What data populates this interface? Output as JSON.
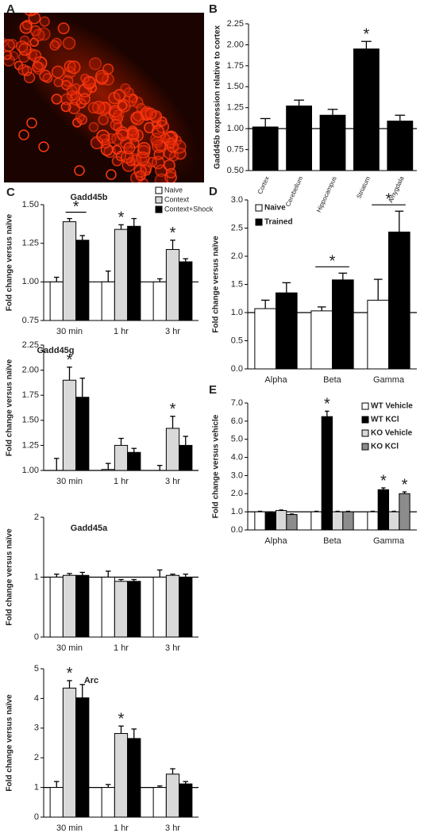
{
  "image_panel": {
    "label": "A"
  },
  "chart_data": [
    {
      "type": "bar",
      "panel": "B",
      "ylabel": "Gadd45b expression relative to cortex",
      "categories": [
        "Cortex",
        "Cerebellum",
        "Hippocampus",
        "Striatum",
        "Amygdala"
      ],
      "values": [
        1.02,
        1.27,
        1.16,
        1.95,
        1.09
      ],
      "errors": [
        0.1,
        0.07,
        0.07,
        0.09,
        0.07
      ],
      "significance": [
        null,
        null,
        null,
        "*",
        null
      ],
      "color": "#000000",
      "ref_line": 1,
      "ylim": [
        0.5,
        2.25
      ],
      "yticks": [
        {
          "value": 0.5,
          "label": "0.50"
        },
        {
          "value": 0.75,
          "label": "0.75"
        },
        {
          "value": 1,
          "label": "1.00"
        },
        {
          "value": 1.25,
          "label": "1.25"
        },
        {
          "value": 1.5,
          "label": "1.50"
        },
        {
          "value": 1.75,
          "label": "1.75"
        },
        {
          "value": 2,
          "label": "2.00"
        },
        {
          "value": 2.25,
          "label": "2.25"
        }
      ]
    },
    {
      "type": "grouped_bar",
      "panel": "C",
      "title": "Gadd45b",
      "ylabel": "Fold change versus naïve",
      "categories": [
        "30 min",
        "1 hr",
        "3 hr"
      ],
      "legend": "top-right",
      "brackets": [
        "30 min"
      ],
      "ref_line": 1,
      "series": [
        {
          "name": "Naive",
          "color": "#ffffff",
          "values": [
            1.0,
            1.0,
            1.0
          ],
          "errors": [
            0.03,
            0.07,
            0.02
          ]
        },
        {
          "name": "Context",
          "color": "#d9d9d9",
          "values": [
            1.39,
            1.34,
            1.21
          ],
          "errors": [
            0.02,
            0.03,
            0.06
          ],
          "significance": [
            "*",
            "*",
            "*"
          ]
        },
        {
          "name": "Context+Shock",
          "color": "#000000",
          "values": [
            1.27,
            1.36,
            1.13
          ],
          "errors": [
            0.03,
            0.05,
            0.02
          ]
        }
      ],
      "ylim": [
        0.75,
        1.5
      ],
      "yticks": [
        {
          "value": 0.75,
          "label": "0.75"
        },
        {
          "value": 1,
          "label": "1.00"
        },
        {
          "value": 1.25,
          "label": "1.25"
        },
        {
          "value": 1.5,
          "label": "1.50"
        }
      ]
    },
    {
      "type": "grouped_bar",
      "title": "Gadd45g",
      "ylabel": "Fold change versus naïve",
      "categories": [
        "30 min",
        "1 hr",
        "3 hr"
      ],
      "ref_line": 1,
      "series": [
        {
          "color": "#ffffff",
          "values": [
            1.0,
            1.01,
            1.0
          ],
          "errors": [
            0.12,
            0.06,
            0.05
          ]
        },
        {
          "color": "#d9d9d9",
          "values": [
            1.9,
            1.25,
            1.42
          ],
          "errors": [
            0.13,
            0.07,
            0.12
          ],
          "significance": [
            "*",
            null,
            "*"
          ]
        },
        {
          "color": "#000000",
          "values": [
            1.73,
            1.18,
            1.25
          ],
          "errors": [
            0.19,
            0.04,
            0.09
          ]
        }
      ],
      "ylim": [
        1,
        2.25
      ],
      "yticks": [
        {
          "value": 1,
          "label": "1.00"
        },
        {
          "value": 1.25,
          "label": "1.25"
        },
        {
          "value": 1.5,
          "label": "1.50"
        },
        {
          "value": 1.75,
          "label": "1.75"
        },
        {
          "value": 2,
          "label": "2.00"
        },
        {
          "value": 2.25,
          "label": "2.25"
        }
      ]
    },
    {
      "type": "grouped_bar",
      "title": "Gadd45a",
      "ylabel": "Fold change versus naïve",
      "categories": [
        "30 min",
        "1 hr",
        "3 hr"
      ],
      "ref_line": 1,
      "series": [
        {
          "color": "#ffffff",
          "values": [
            1.0,
            1.0,
            1.0
          ],
          "errors": [
            0.05,
            0.1,
            0.12
          ]
        },
        {
          "color": "#d9d9d9",
          "values": [
            1.03,
            0.93,
            1.03
          ],
          "errors": [
            0.03,
            0.03,
            0.02
          ]
        },
        {
          "color": "#000000",
          "values": [
            1.03,
            0.93,
            1.0
          ],
          "errors": [
            0.05,
            0.03,
            0.05
          ]
        }
      ],
      "ylim": [
        0,
        2
      ],
      "yticks": [
        0,
        1,
        2
      ]
    },
    {
      "type": "grouped_bar",
      "title": "Arc",
      "ylabel": "Fold change versus naïve",
      "categories": [
        "30 min",
        "1 hr",
        "3 hr"
      ],
      "ref_line": 1,
      "series": [
        {
          "color": "#ffffff",
          "values": [
            1.0,
            1.0,
            1.0
          ],
          "errors": [
            0.2,
            0.1,
            0.05
          ]
        },
        {
          "color": "#d9d9d9",
          "values": [
            4.35,
            2.82,
            1.45
          ],
          "errors": [
            0.25,
            0.25,
            0.18
          ],
          "significance": [
            "*",
            "*",
            null
          ]
        },
        {
          "color": "#000000",
          "values": [
            4.02,
            2.65,
            1.12
          ],
          "errors": [
            0.45,
            0.32,
            0.08
          ]
        }
      ],
      "ylim": [
        0,
        5
      ],
      "yticks": [
        0,
        1,
        2,
        3,
        4,
        5
      ]
    },
    {
      "type": "grouped_bar",
      "panel": "D",
      "ylabel": "Fold change versus naïve",
      "categories": [
        "Alpha",
        "Beta",
        "Gamma"
      ],
      "legend": "top-left",
      "brackets": [
        "Beta",
        "Gamma"
      ],
      "ref_line": 1,
      "series": [
        {
          "name": "Naive",
          "color": "#ffffff",
          "values": [
            1.07,
            1.03,
            1.22
          ],
          "errors": [
            0.15,
            0.07,
            0.37
          ],
          "significance": [
            null,
            "*",
            "*"
          ]
        },
        {
          "name": "Trained",
          "color": "#000000",
          "values": [
            1.35,
            1.58,
            2.43
          ],
          "errors": [
            0.18,
            0.12,
            0.37
          ]
        }
      ],
      "ylim": [
        0,
        3
      ],
      "yticks": [
        {
          "value": 0,
          "label": "0.0"
        },
        {
          "value": 0.5,
          "label": "0.5"
        },
        {
          "value": 1,
          "label": "1.0"
        },
        {
          "value": 1.5,
          "label": "1.5"
        },
        {
          "value": 2,
          "label": "2.0"
        },
        {
          "value": 2.5,
          "label": "2.5"
        },
        {
          "value": 3,
          "label": "3.0"
        }
      ]
    },
    {
      "type": "grouped_bar",
      "panel": "E",
      "ylabel": "Fold change versus vehicle",
      "categories": [
        "Alpha",
        "Beta",
        "Gamma"
      ],
      "legend": "top-right",
      "ref_line": 1,
      "series": [
        {
          "name": "WT Vehicle",
          "color": "#ffffff",
          "values": [
            1.0,
            1.0,
            1.0
          ],
          "errors": [
            0.03,
            0.03,
            0.03
          ]
        },
        {
          "name": "WT KCl",
          "color": "#000000",
          "values": [
            0.95,
            6.25,
            2.22
          ],
          "errors": [
            0.03,
            0.3,
            0.1
          ],
          "significance": [
            null,
            "*",
            "*"
          ]
        },
        {
          "name": "KO Vehicle",
          "color": "#d9d9d9",
          "values": [
            1.07,
            1.0,
            1.0
          ],
          "errors": [
            0.03,
            0.03,
            0.03
          ]
        },
        {
          "name": "KO KCl",
          "color": "#8c8c8c",
          "values": [
            0.85,
            1.0,
            2.0
          ],
          "errors": [
            0.03,
            0.03,
            0.1
          ],
          "significance": [
            null,
            null,
            "*"
          ]
        }
      ],
      "ylim": [
        0,
        7
      ],
      "yticks": [
        {
          "value": 0,
          "label": "0.0"
        },
        {
          "value": 1,
          "label": "1.0"
        },
        {
          "value": 2,
          "label": "2.0"
        },
        {
          "value": 3,
          "label": "3.0"
        },
        {
          "value": 4,
          "label": "4.0"
        },
        {
          "value": 5,
          "label": "5.0"
        },
        {
          "value": 6,
          "label": "6.0"
        },
        {
          "value": 7,
          "label": "7.0"
        }
      ]
    }
  ]
}
